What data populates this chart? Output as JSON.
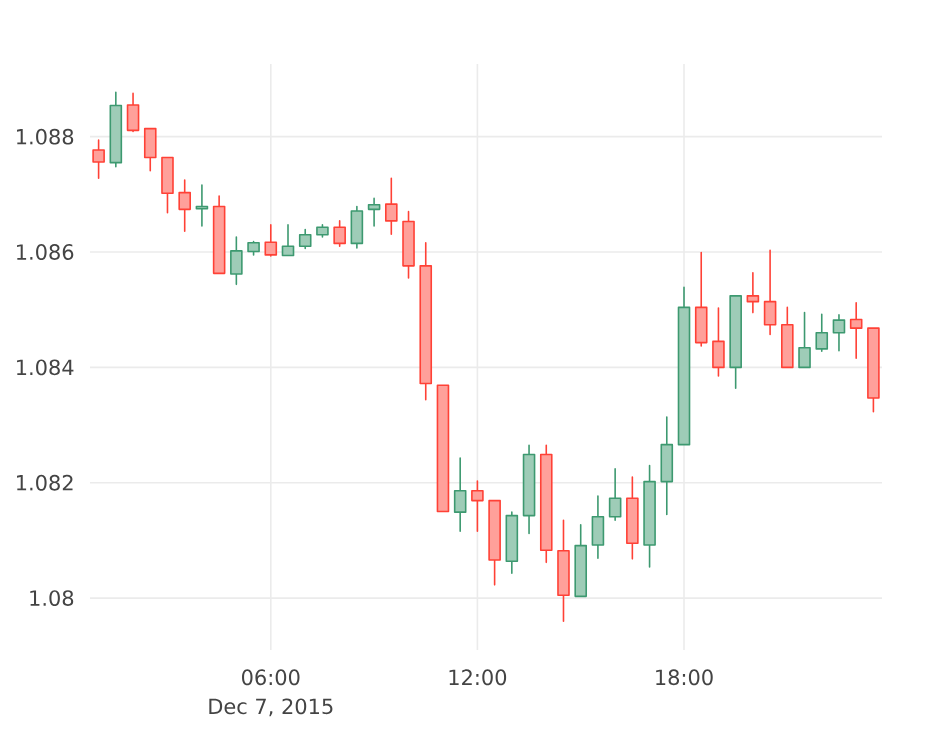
{
  "chart_data": {
    "type": "candlestick",
    "xlabel": "Dec 7, 2015",
    "x": [
      "2015-12-07T01:00",
      "2015-12-07T01:30",
      "2015-12-07T02:00",
      "2015-12-07T02:30",
      "2015-12-07T03:00",
      "2015-12-07T03:30",
      "2015-12-07T04:00",
      "2015-12-07T04:30",
      "2015-12-07T05:00",
      "2015-12-07T05:30",
      "2015-12-07T06:00",
      "2015-12-07T06:30",
      "2015-12-07T07:00",
      "2015-12-07T07:30",
      "2015-12-07T08:00",
      "2015-12-07T08:30",
      "2015-12-07T09:00",
      "2015-12-07T09:30",
      "2015-12-07T10:00",
      "2015-12-07T10:30",
      "2015-12-07T11:00",
      "2015-12-07T11:30",
      "2015-12-07T12:00",
      "2015-12-07T12:30",
      "2015-12-07T13:00",
      "2015-12-07T13:30",
      "2015-12-07T14:00",
      "2015-12-07T14:30",
      "2015-12-07T15:00",
      "2015-12-07T15:30",
      "2015-12-07T16:00",
      "2015-12-07T16:30",
      "2015-12-07T17:00",
      "2015-12-07T17:30",
      "2015-12-07T18:00",
      "2015-12-07T18:30",
      "2015-12-07T19:00",
      "2015-12-07T19:30",
      "2015-12-07T20:00",
      "2015-12-07T20:30",
      "2015-12-07T21:00",
      "2015-12-07T21:30",
      "2015-12-07T22:00",
      "2015-12-07T22:30",
      "2015-12-07T23:00",
      "2015-12-07T23:30"
    ],
    "ohlc": [
      [
        1.08777,
        1.08794,
        1.08728,
        1.08756
      ],
      [
        1.08755,
        1.08877,
        1.08748,
        1.08854
      ],
      [
        1.08855,
        1.08875,
        1.08809,
        1.08811
      ],
      [
        1.08814,
        1.08814,
        1.08741,
        1.08764
      ],
      [
        1.08764,
        1.08764,
        1.08668,
        1.08702
      ],
      [
        1.08703,
        1.08725,
        1.08636,
        1.08674
      ],
      [
        1.08675,
        1.08716,
        1.08645,
        1.08679
      ],
      [
        1.08679,
        1.08697,
        1.08563,
        1.08563
      ],
      [
        1.08562,
        1.08626,
        1.08544,
        1.08602
      ],
      [
        1.08601,
        1.08618,
        1.08595,
        1.08616
      ],
      [
        1.08617,
        1.08647,
        1.08593,
        1.08595
      ],
      [
        1.08594,
        1.08647,
        1.08594,
        1.0861
      ],
      [
        1.0861,
        1.08639,
        1.08606,
        1.0863
      ],
      [
        1.0863,
        1.08647,
        1.08626,
        1.08643
      ],
      [
        1.08643,
        1.08654,
        1.0861,
        1.08615
      ],
      [
        1.08615,
        1.08679,
        1.08607,
        1.08671
      ],
      [
        1.08674,
        1.08693,
        1.08645,
        1.08682
      ],
      [
        1.08683,
        1.08728,
        1.08631,
        1.08654
      ],
      [
        1.08653,
        1.0867,
        1.08555,
        1.08576
      ],
      [
        1.08576,
        1.08616,
        1.08344,
        1.08372
      ],
      [
        1.08369,
        1.08369,
        1.0815,
        1.0815
      ],
      [
        1.08149,
        1.08243,
        1.08116,
        1.08186
      ],
      [
        1.08186,
        1.08203,
        1.08116,
        1.08169
      ],
      [
        1.08169,
        1.08169,
        1.08023,
        1.08066
      ],
      [
        1.08064,
        1.08149,
        1.08043,
        1.08143
      ],
      [
        1.08143,
        1.08265,
        1.08112,
        1.08249
      ],
      [
        1.08249,
        1.08265,
        1.08062,
        1.08083
      ],
      [
        1.08082,
        1.08135,
        1.0796,
        1.08005
      ],
      [
        1.08003,
        1.08127,
        1.08003,
        1.08091
      ],
      [
        1.08092,
        1.08177,
        1.08069,
        1.08141
      ],
      [
        1.08141,
        1.08224,
        1.08135,
        1.08173
      ],
      [
        1.08173,
        1.0821,
        1.08068,
        1.08095
      ],
      [
        1.08092,
        1.0823,
        1.08054,
        1.08202
      ],
      [
        1.08202,
        1.08314,
        1.08145,
        1.08266
      ],
      [
        1.08266,
        1.08539,
        1.08266,
        1.08504
      ],
      [
        1.08504,
        1.08599,
        1.08437,
        1.08443
      ],
      [
        1.08445,
        1.08503,
        1.08385,
        1.084
      ],
      [
        1.084,
        1.08524,
        1.08364,
        1.08524
      ],
      [
        1.08524,
        1.08564,
        1.08495,
        1.08514
      ],
      [
        1.08514,
        1.08603,
        1.08457,
        1.08474
      ],
      [
        1.08474,
        1.08504,
        1.084,
        1.084
      ],
      [
        1.084,
        1.08495,
        1.084,
        1.08434
      ],
      [
        1.08432,
        1.08492,
        1.08428,
        1.0846
      ],
      [
        1.0846,
        1.08491,
        1.08429,
        1.08482
      ],
      [
        1.08483,
        1.08512,
        1.08416,
        1.08468
      ],
      [
        1.08468,
        1.08468,
        1.08323,
        1.08347
      ]
    ],
    "colors": [
      "#ff4136",
      "#3d9970",
      "#ff4136",
      "#ff4136",
      "#ff4136",
      "#ff4136",
      "#3d9970",
      "#ff4136",
      "#3d9970",
      "#3d9970",
      "#ff4136",
      "#3d9970",
      "#3d9970",
      "#3d9970",
      "#ff4136",
      "#3d9970",
      "#3d9970",
      "#ff4136",
      "#ff4136",
      "#ff4136",
      "#ff4136",
      "#3d9970",
      "#ff4136",
      "#ff4136",
      "#3d9970",
      "#3d9970",
      "#ff4136",
      "#ff4136",
      "#3d9970",
      "#3d9970",
      "#3d9970",
      "#ff4136",
      "#3d9970",
      "#3d9970",
      "#3d9970",
      "#ff4136",
      "#ff4136",
      "#3d9970",
      "#ff4136",
      "#ff4136",
      "#ff4136",
      "#3d9970",
      "#3d9970",
      "#3d9970",
      "#ff4136",
      "#ff4136"
    ],
    "xlim": [
      "2015-12-07T00:45",
      "2015-12-07T23:45"
    ],
    "xticks": [
      {
        "value": "2015-12-07T06:00",
        "label": "06:00"
      },
      {
        "value": "2015-12-07T12:00",
        "label": "12:00"
      },
      {
        "value": "2015-12-07T18:00",
        "label": "18:00"
      }
    ],
    "ylim": [
      1.0791,
      1.08926
    ],
    "yticks": [
      1.08,
      1.082,
      1.084,
      1.086,
      1.088
    ],
    "grid": true
  }
}
